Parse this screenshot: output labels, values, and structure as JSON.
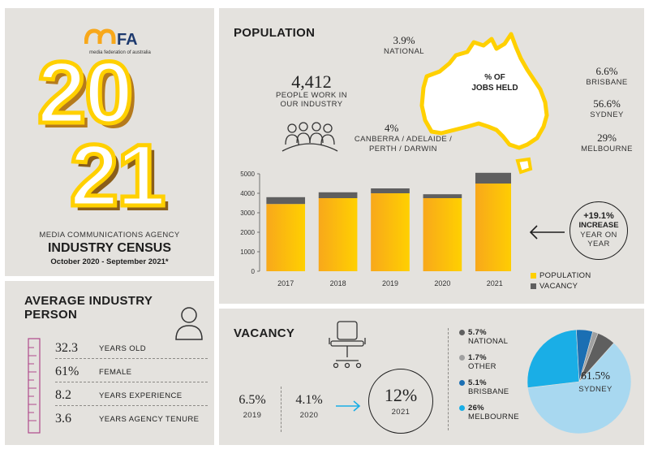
{
  "colors": {
    "yellow": "#ffd000",
    "orange": "#f8a81b",
    "vacancy": "#5f5f5f",
    "panel": "#e4e2de",
    "sydney_blue": "#a8d8f0",
    "melbourne_blue": "#1aaee6",
    "brisbane_blue": "#1b6fb3",
    "other_grey": "#a0a0a0",
    "national_grey": "#5f5f5f"
  },
  "brand": {
    "logo": "mFA",
    "logo_sub": "media federation of australia",
    "year_top": "20",
    "year_bottom": "21",
    "subtitle": "MEDIA COMMUNICATIONS AGENCY",
    "title": "INDUSTRY CENSUS",
    "dates": "October 2020 - September 2021*"
  },
  "population": {
    "heading": "POPULATION",
    "people_value": "4,412",
    "people_label_1": "PEOPLE WORK IN",
    "people_label_2": "OUR INDUSTRY",
    "map_label_1": "% OF",
    "map_label_2": "JOBS HELD",
    "national_value": "3.9%",
    "national_label": "NATIONAL",
    "other_value": "4%",
    "other_label_1": "CANBERRA / ADELAIDE /",
    "other_label_2": "PERTH / DARWIN",
    "brisbane_value": "6.6%",
    "brisbane_label": "BRISBANE",
    "sydney_value": "56.6%",
    "sydney_label": "SYDNEY",
    "melbourne_value": "29%",
    "melbourne_label": "MELBOURNE",
    "increase_value": "+19.1%",
    "increase_word": "INCREASE",
    "increase_line_1": "YEAR ON",
    "increase_line_2": "YEAR"
  },
  "chart_data": {
    "type": "bar",
    "stacked": true,
    "categories": [
      "2017",
      "2018",
      "2019",
      "2020",
      "2021"
    ],
    "series": [
      {
        "name": "POPULATION",
        "values": [
          3450,
          3750,
          4000,
          3750,
          4500
        ]
      },
      {
        "name": "VACANCY",
        "values": [
          350,
          300,
          250,
          200,
          550
        ]
      }
    ],
    "ylim": [
      0,
      5000
    ],
    "yticks": [
      "0",
      "1000",
      "2000",
      "3000",
      "4000",
      "5000"
    ],
    "grid": false,
    "legend_position": "bottom-right"
  },
  "average": {
    "heading_1": "AVERAGE INDUSTRY",
    "heading_2": "PERSON",
    "rows": [
      {
        "value": "32.3",
        "label": "YEARS OLD"
      },
      {
        "value": "61%",
        "label": "FEMALE"
      },
      {
        "value": "8.2",
        "label": "YEARS EXPERIENCE"
      },
      {
        "value": "3.6",
        "label": "YEARS AGENCY TENURE"
      }
    ]
  },
  "vacancy": {
    "heading": "VACANCY",
    "v2019_value": "6.5%",
    "v2019_label": "2019",
    "v2020_value": "4.1%",
    "v2020_label": "2020",
    "v2021_value": "12%",
    "v2021_label": "2021",
    "legend": [
      {
        "value": "5.7%",
        "label": "NATIONAL",
        "color": "#5f5f5f"
      },
      {
        "value": "1.7%",
        "label": "OTHER",
        "color": "#a0a0a0"
      },
      {
        "value": "5.1%",
        "label": "BRISBANE",
        "color": "#1b6fb3"
      },
      {
        "value": "26%",
        "label": "MELBOURNE",
        "color": "#1aaee6"
      }
    ],
    "sydney_value": "61.5%",
    "sydney_label": "SYDNEY",
    "pie": [
      {
        "label": "SYDNEY",
        "value": 61.5,
        "color": "#a8d8f0"
      },
      {
        "label": "MELBOURNE",
        "value": 26,
        "color": "#1aaee6"
      },
      {
        "label": "BRISBANE",
        "value": 5.1,
        "color": "#1b6fb3"
      },
      {
        "label": "OTHER",
        "value": 1.7,
        "color": "#a0a0a0"
      },
      {
        "label": "NATIONAL",
        "value": 5.7,
        "color": "#5f5f5f"
      }
    ]
  }
}
